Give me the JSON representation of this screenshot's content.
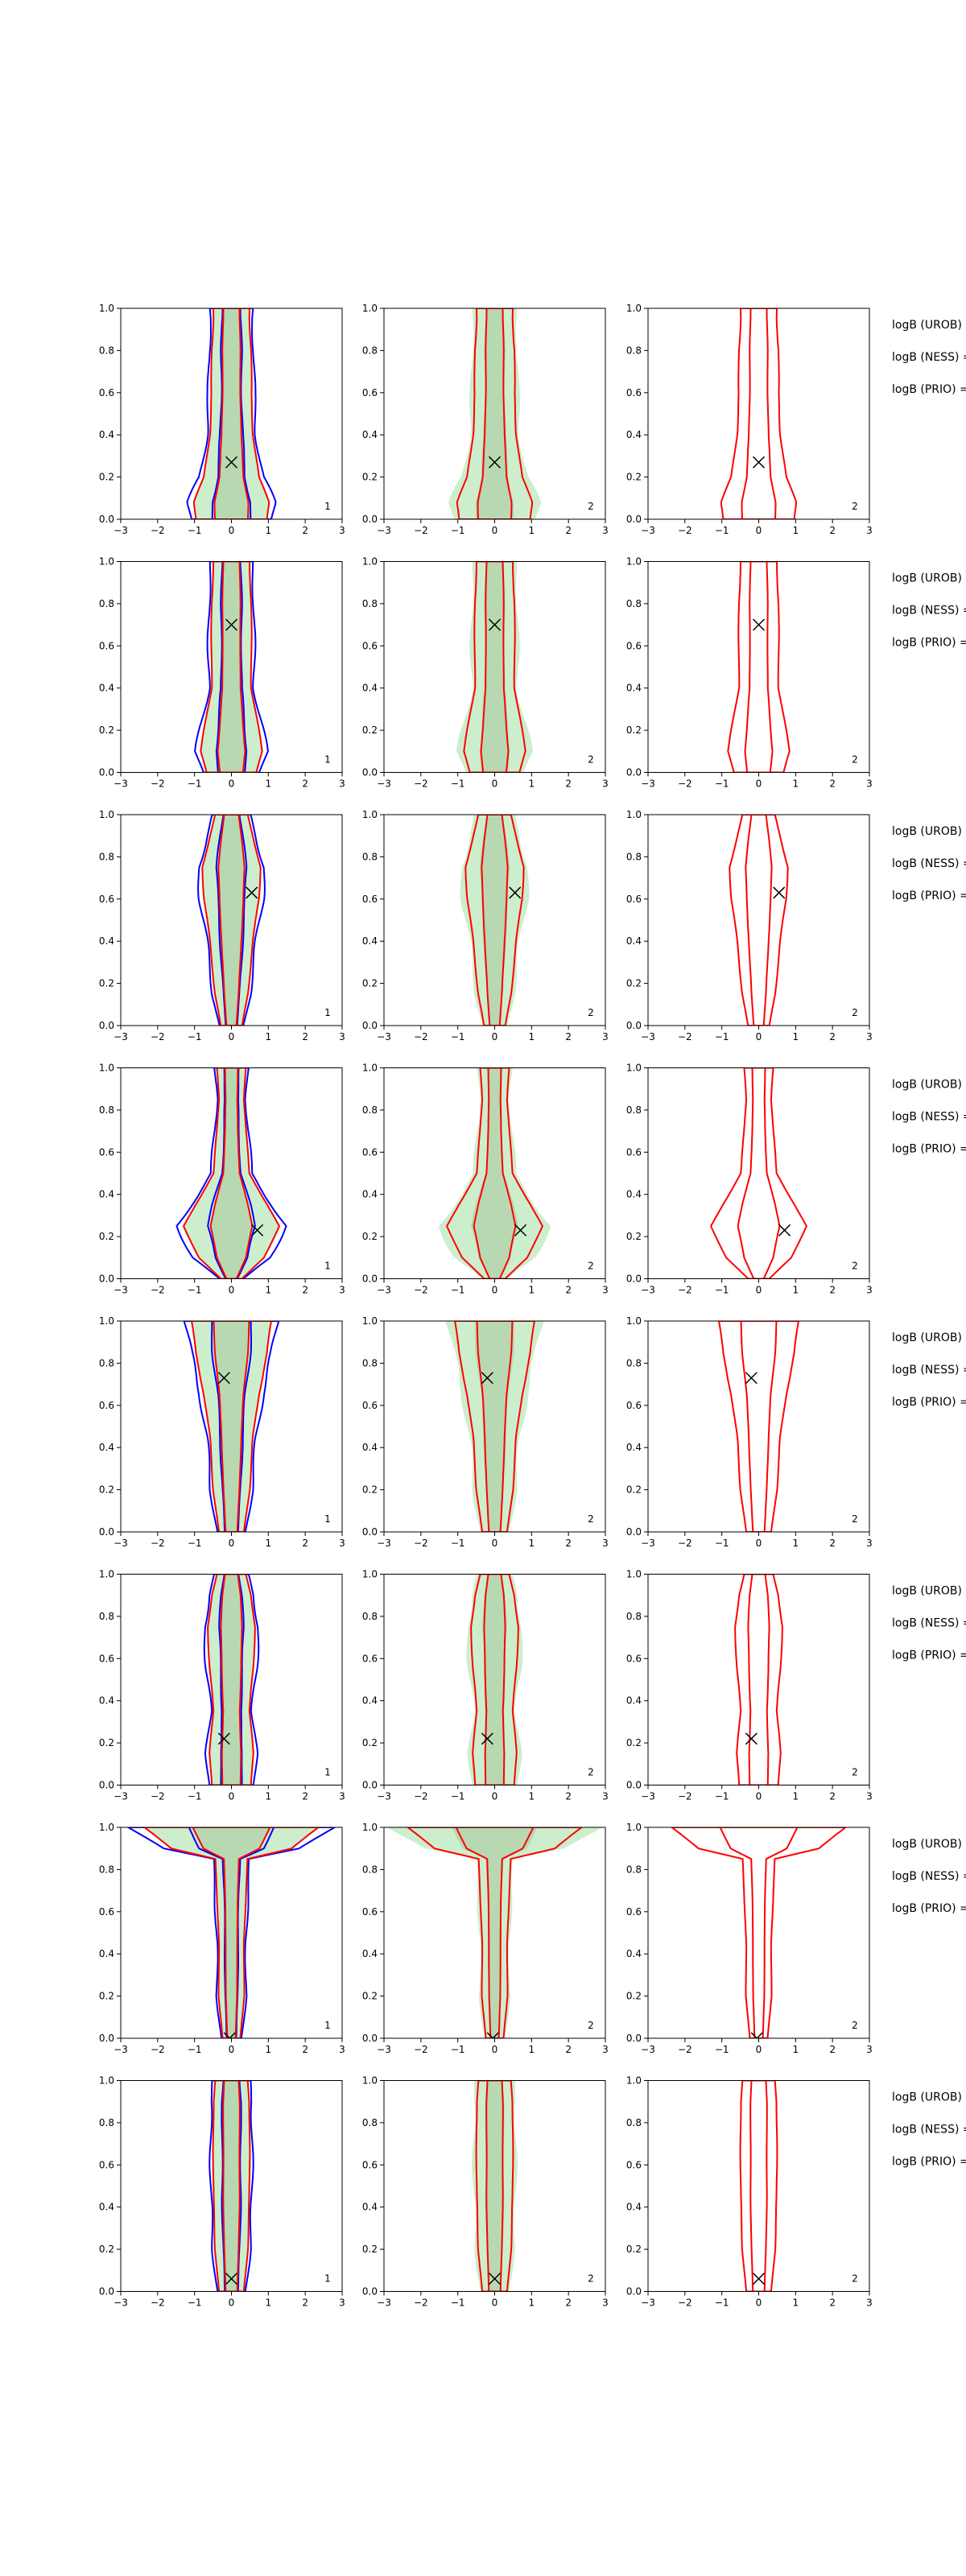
{
  "figure": {
    "rows": 8,
    "cols": 3,
    "xlim": [
      -3,
      3
    ],
    "ylim": [
      0,
      1
    ],
    "xticks": [
      "−3",
      "−2",
      "−1",
      "0",
      "1",
      "2",
      "3"
    ],
    "yticks": [
      "0.0",
      "0.2",
      "0.4",
      "0.6",
      "0.8",
      "1.0"
    ],
    "colors": {
      "fill_outer": "#cdeecd",
      "fill_inner": "#b8d8b2",
      "uniform_outer": "#d9f0d6",
      "red": "#ff0000",
      "blue": "#0000ff",
      "marker": "#000000"
    },
    "legend_labels": [
      "logB (UROB) =",
      "logB (NESS) =",
      "logB (PRIO) ="
    ]
  },
  "chart_data": [
    {
      "type": "contour",
      "row": 0,
      "marker": {
        "x": 0.0,
        "y": 0.27
      },
      "panel_labels": [
        "1",
        "2",
        "2"
      ],
      "profile": [
        {
          "y": 0.0,
          "w": 1.0
        },
        {
          "y": 0.08,
          "w": 1.05
        },
        {
          "y": 0.2,
          "w": 0.75
        },
        {
          "y": 0.4,
          "w": 0.6
        },
        {
          "y": 0.6,
          "w": 0.55
        },
        {
          "y": 0.8,
          "w": 0.55
        },
        {
          "y": 0.95,
          "w": 0.5
        },
        {
          "y": 1.0,
          "w": 0.5
        }
      ]
    },
    {
      "type": "contour",
      "row": 1,
      "marker": {
        "x": 0.0,
        "y": 0.7
      },
      "panel_labels": [
        "1",
        "2",
        "2"
      ],
      "profile": [
        {
          "y": 0.0,
          "w": 0.7
        },
        {
          "y": 0.1,
          "w": 0.85
        },
        {
          "y": 0.25,
          "w": 0.7
        },
        {
          "y": 0.4,
          "w": 0.55
        },
        {
          "y": 0.6,
          "w": 0.55
        },
        {
          "y": 0.8,
          "w": 0.55
        },
        {
          "y": 1.0,
          "w": 0.5
        }
      ]
    },
    {
      "type": "contour",
      "row": 2,
      "marker": {
        "x": 0.55,
        "y": 0.63
      },
      "panel_labels": [
        "1",
        "2",
        "2"
      ],
      "profile": [
        {
          "y": 0.0,
          "w": 0.3
        },
        {
          "y": 0.15,
          "w": 0.45
        },
        {
          "y": 0.4,
          "w": 0.6
        },
        {
          "y": 0.6,
          "w": 0.75
        },
        {
          "y": 0.75,
          "w": 0.8
        },
        {
          "y": 0.9,
          "w": 0.6
        },
        {
          "y": 1.0,
          "w": 0.45
        }
      ]
    },
    {
      "type": "contour",
      "row": 3,
      "marker": {
        "x": 0.7,
        "y": 0.23
      },
      "panel_labels": [
        "1",
        "2",
        "2"
      ],
      "profile": [
        {
          "y": 0.0,
          "w": 0.3
        },
        {
          "y": 0.1,
          "w": 0.9
        },
        {
          "y": 0.25,
          "w": 1.3
        },
        {
          "y": 0.35,
          "w": 1.0
        },
        {
          "y": 0.5,
          "w": 0.5
        },
        {
          "y": 0.7,
          "w": 0.4
        },
        {
          "y": 0.85,
          "w": 0.35
        },
        {
          "y": 1.0,
          "w": 0.4
        }
      ]
    },
    {
      "type": "contour",
      "row": 4,
      "marker": {
        "x": -0.2,
        "y": 0.73
      },
      "panel_labels": [
        "1",
        "2",
        "2"
      ],
      "profile": [
        {
          "y": 0.0,
          "w": 0.35
        },
        {
          "y": 0.2,
          "w": 0.5
        },
        {
          "y": 0.45,
          "w": 0.6
        },
        {
          "y": 0.65,
          "w": 0.75
        },
        {
          "y": 0.85,
          "w": 1.0
        },
        {
          "y": 1.0,
          "w": 1.1
        }
      ]
    },
    {
      "type": "contour",
      "row": 5,
      "marker": {
        "x": -0.2,
        "y": 0.22
      },
      "panel_labels": [
        "1",
        "2",
        "2"
      ],
      "profile": [
        {
          "y": 0.0,
          "w": 0.55
        },
        {
          "y": 0.15,
          "w": 0.6
        },
        {
          "y": 0.35,
          "w": 0.5
        },
        {
          "y": 0.55,
          "w": 0.6
        },
        {
          "y": 0.75,
          "w": 0.65
        },
        {
          "y": 0.9,
          "w": 0.55
        },
        {
          "y": 1.0,
          "w": 0.4
        }
      ]
    },
    {
      "type": "contour",
      "row": 6,
      "marker": {
        "x": -0.05,
        "y": 0.0
      },
      "panel_labels": [
        "1",
        "2",
        "2"
      ],
      "profile": [
        {
          "y": 0.0,
          "w": 0.25
        },
        {
          "y": 0.2,
          "w": 0.35
        },
        {
          "y": 0.45,
          "w": 0.35
        },
        {
          "y": 0.7,
          "w": 0.4
        },
        {
          "y": 0.85,
          "w": 0.45
        },
        {
          "y": 0.9,
          "w": 1.7
        },
        {
          "y": 1.0,
          "w": 2.4
        }
      ]
    },
    {
      "type": "contour",
      "row": 7,
      "marker": {
        "x": 0.0,
        "y": 0.06
      },
      "panel_labels": [
        "1",
        "2",
        "2"
      ],
      "profile": [
        {
          "y": 0.0,
          "w": 0.35
        },
        {
          "y": 0.2,
          "w": 0.45
        },
        {
          "y": 0.45,
          "w": 0.5
        },
        {
          "y": 0.7,
          "w": 0.5
        },
        {
          "y": 0.9,
          "w": 0.5
        },
        {
          "y": 1.0,
          "w": 0.45
        }
      ]
    }
  ]
}
